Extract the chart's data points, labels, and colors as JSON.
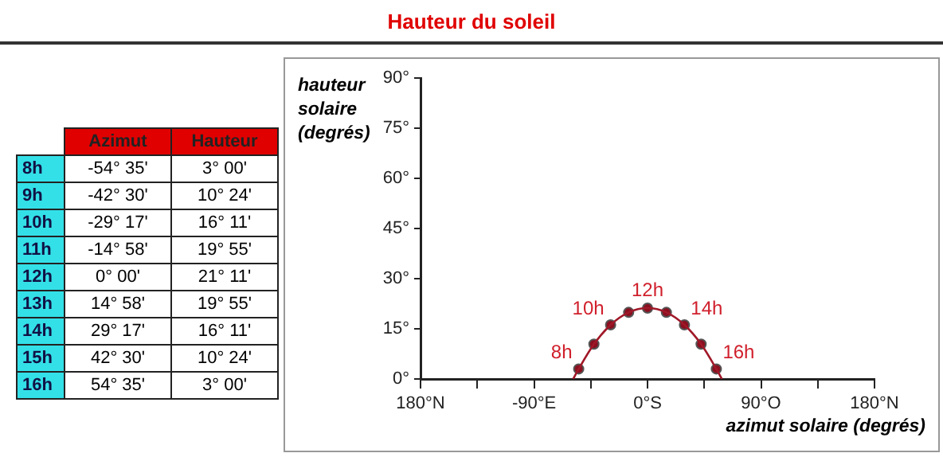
{
  "chart_data": {
    "type": "scatter",
    "title": "Hauteur du soleil",
    "xlabel": "azimut solaire (degrés)",
    "ylabel": "hauteur solaire (degrés)",
    "xlim": [
      -180,
      180
    ],
    "xticks": [
      {
        "value": -180,
        "label": "180°N"
      },
      {
        "value": -135,
        "label": null
      },
      {
        "value": -90,
        "label": "-90°E"
      },
      {
        "value": -45,
        "label": null
      },
      {
        "value": 0,
        "label": "0°S"
      },
      {
        "value": 45,
        "label": null
      },
      {
        "value": 90,
        "label": "90°O"
      },
      {
        "value": 135,
        "label": null
      },
      {
        "value": 180,
        "label": "180°N"
      }
    ],
    "ylim": [
      0,
      90
    ],
    "yticks": [
      {
        "value": 0,
        "label": "0°"
      },
      {
        "value": 15,
        "label": "15°"
      },
      {
        "value": 30,
        "label": "30°"
      },
      {
        "value": 45,
        "label": "45°"
      },
      {
        "value": 60,
        "label": "60°"
      },
      {
        "value": 75,
        "label": "75°"
      },
      {
        "value": 90,
        "label": "90°"
      }
    ],
    "grid": false,
    "legend": false,
    "series": [
      {
        "type": "line",
        "marker": "none",
        "color": "#a01828",
        "x": [
          -59,
          -54.58,
          -42.5,
          -29.28,
          -14.97,
          0,
          14.97,
          29.28,
          42.5,
          54.58,
          59
        ],
        "values": [
          0,
          3,
          10.4,
          16.18,
          19.92,
          21.18,
          19.92,
          16.18,
          10.4,
          3,
          0
        ]
      },
      {
        "type": "scatter",
        "marker": "circle",
        "color": "#8a1020",
        "x": [
          -54.58,
          -42.5,
          -29.28,
          -14.97,
          0,
          14.97,
          29.28,
          42.5,
          54.58
        ],
        "values": [
          3,
          10.4,
          16.18,
          19.92,
          21.18,
          19.92,
          16.18,
          10.4,
          3
        ]
      }
    ],
    "annotations": [
      {
        "text": "8h",
        "x": -54.58,
        "y": 3
      },
      {
        "text": "10h",
        "x": -29.28,
        "y": 16.18
      },
      {
        "text": "12h",
        "x": 0,
        "y": 21.18
      },
      {
        "text": "14h",
        "x": 29.28,
        "y": 16.18
      },
      {
        "text": "16h",
        "x": 54.58,
        "y": 3
      },
      "Azimut",
      "Hauteur",
      "8h",
      "-54° 35'",
      "3° 00'",
      "9h",
      "-42° 30'",
      "10° 24'",
      "10h",
      "-29° 17'",
      "16° 11'",
      "11h",
      "-14° 58'",
      "19° 55'",
      "12h",
      "0° 00'",
      "21° 11'",
      "13h",
      "14° 58'",
      "19° 55'",
      "14h",
      "29° 17'",
      "16° 11'",
      "15h",
      "42° 30'",
      "10° 24'",
      "16h",
      "54° 35'",
      "3° 00'"
    ]
  }
}
